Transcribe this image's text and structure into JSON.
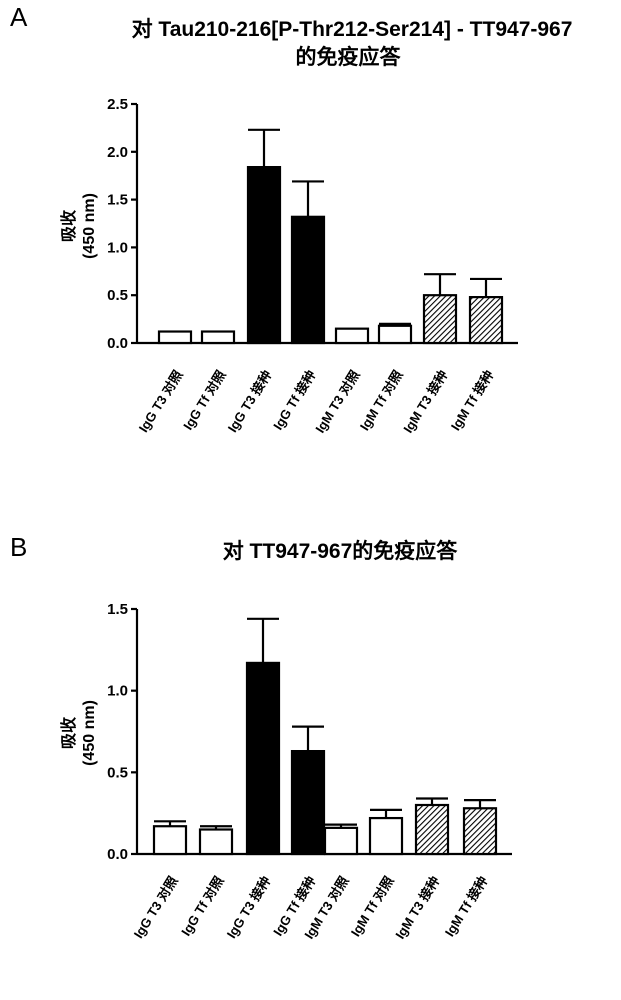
{
  "panels": [
    {
      "letter": "A",
      "title_lines": [
        "对 Tau210-216[P-Thr212-Ser214] - TT947-967",
        "的免疫应答"
      ],
      "ylabel_lines": [
        "吸收",
        "(450 nm)"
      ],
      "chart_data": {
        "type": "bar",
        "title": "对 Tau210-216[P-Thr212-Ser214] - TT947-967 的免疫应答",
        "ylabel": "吸收 (450 nm)",
        "ylim": [
          0,
          2.5
        ],
        "yticks": [
          "0.0",
          "0.5",
          "1.0",
          "1.5",
          "2.0",
          "2.5"
        ],
        "categories": [
          "IgG T3 对照",
          "IgG Tf 对照",
          "IgG T3 接种",
          "IgG Tf 接种",
          "IgM T3 对照",
          "IgM Tf 对照",
          "IgM T3 接种",
          "IgM Tf 接种"
        ],
        "values": [
          0.12,
          0.12,
          1.84,
          1.32,
          0.15,
          0.18,
          0.5,
          0.48
        ],
        "errors": [
          0.0,
          0.0,
          0.39,
          0.37,
          0.0,
          0.02,
          0.22,
          0.19
        ],
        "fills": [
          "white",
          "white",
          "black",
          "black",
          "white",
          "white",
          "hatched",
          "hatched"
        ],
        "grid": false,
        "legend": "none"
      }
    },
    {
      "letter": "B",
      "title_lines": [
        "对 TT947-967的免疫应答"
      ],
      "ylabel_lines": [
        "吸收",
        "(450 nm)"
      ],
      "chart_data": {
        "type": "bar",
        "title": "对 TT947-967的免疫应答",
        "ylabel": "吸收 (450 nm)",
        "ylim": [
          0,
          1.5
        ],
        "yticks": [
          "0.0",
          "0.5",
          "1.0",
          "1.5"
        ],
        "categories": [
          "IgG T3 对照",
          "IgG Tf 对照",
          "IgG T3 接种",
          "IgG Tf 接种",
          "IgM T3 对照",
          "IgM Tf 对照",
          "IgM T3 接种",
          "IgM Tf 接种"
        ],
        "values": [
          0.17,
          0.15,
          1.17,
          0.63,
          0.16,
          0.22,
          0.3,
          0.28
        ],
        "errors": [
          0.03,
          0.02,
          0.27,
          0.15,
          0.02,
          0.05,
          0.04,
          0.05
        ],
        "fills": [
          "white",
          "white",
          "black",
          "black",
          "white",
          "white",
          "hatched",
          "hatched"
        ],
        "grid": false,
        "legend": "none"
      }
    }
  ]
}
